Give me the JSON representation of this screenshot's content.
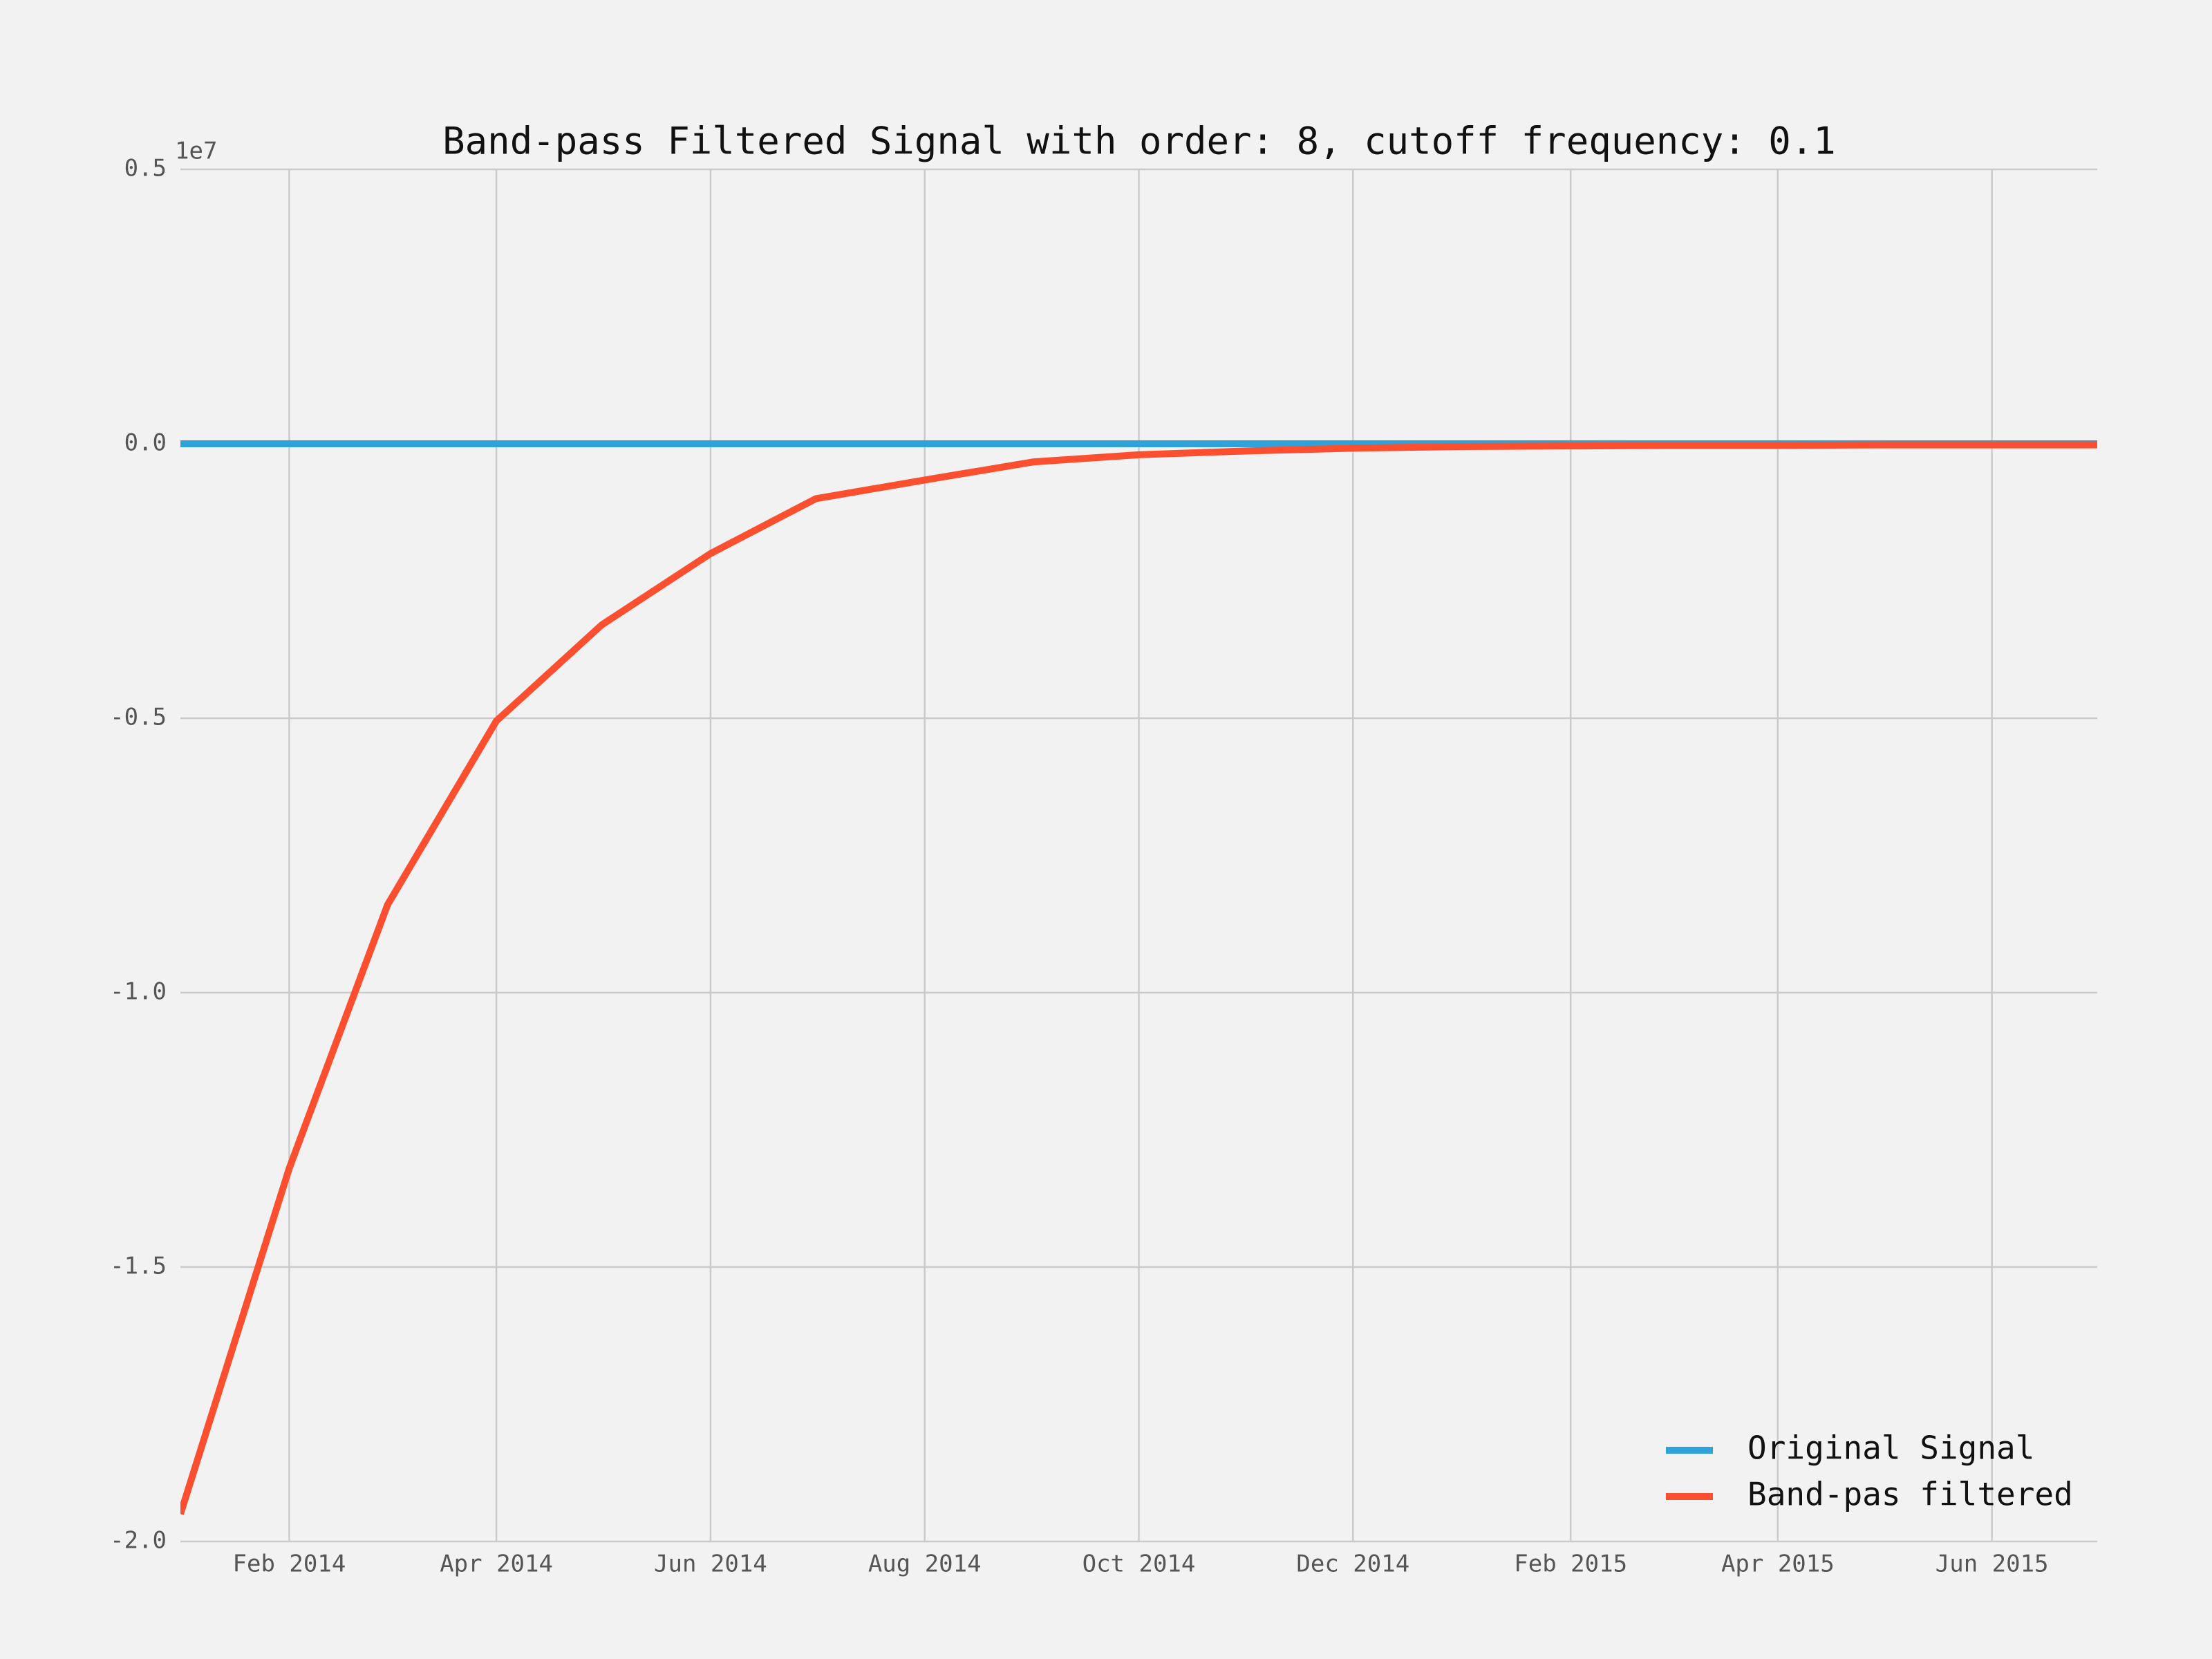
{
  "chart_data": {
    "type": "line",
    "title": "Band-pass Filtered Signal with order: 8, cutoff frequency: 0.1",
    "y_offset_label": "1e7",
    "x": [
      "2014-01",
      "2014-02",
      "2014-03",
      "2014-04",
      "2014-05",
      "2014-06",
      "2014-07",
      "2014-08",
      "2014-09",
      "2014-10",
      "2014-11",
      "2014-12",
      "2015-01",
      "2015-02",
      "2015-03",
      "2015-04",
      "2015-05",
      "2015-06",
      "2015-07"
    ],
    "series": [
      {
        "name": "Original Signal",
        "color": "#30a2da",
        "values": [
          0,
          0,
          0,
          0,
          0,
          0,
          0,
          0,
          0,
          0,
          0,
          0,
          0,
          0,
          0,
          0,
          0,
          0,
          0
        ]
      },
      {
        "name": "Band-pas filtered",
        "color": "#fc4f30",
        "values": [
          -1.95,
          -1.32,
          -0.84,
          -0.505,
          -0.33,
          -0.2,
          -0.1,
          -0.066,
          -0.033,
          -0.02,
          -0.013,
          -0.008,
          -0.005,
          -0.004,
          -0.003,
          -0.003,
          -0.002,
          -0.002,
          -0.002
        ]
      }
    ],
    "xlim": [
      "2014-01",
      "2015-07"
    ],
    "xticks": [
      {
        "value": "2014-02",
        "label": "Feb 2014"
      },
      {
        "value": "2014-04",
        "label": "Apr 2014"
      },
      {
        "value": "2014-06",
        "label": "Jun 2014"
      },
      {
        "value": "2014-08",
        "label": "Aug 2014"
      },
      {
        "value": "2014-10",
        "label": "Oct 2014"
      },
      {
        "value": "2014-12",
        "label": "Dec 2014"
      },
      {
        "value": "2015-02",
        "label": "Feb 2015"
      },
      {
        "value": "2015-04",
        "label": "Apr 2015"
      },
      {
        "value": "2015-06",
        "label": "Jun 2015"
      }
    ],
    "ylim": [
      -2,
      0.5
    ],
    "yticks": [
      {
        "value": -2,
        "label": "-2.0"
      },
      {
        "value": -1.5,
        "label": "-1.5"
      },
      {
        "value": -1,
        "label": "-1.0"
      },
      {
        "value": -0.5,
        "label": "-0.5"
      },
      {
        "value": 0,
        "label": "0.0"
      },
      0.5
    ],
    "grid": true,
    "legend": "lower right"
  }
}
